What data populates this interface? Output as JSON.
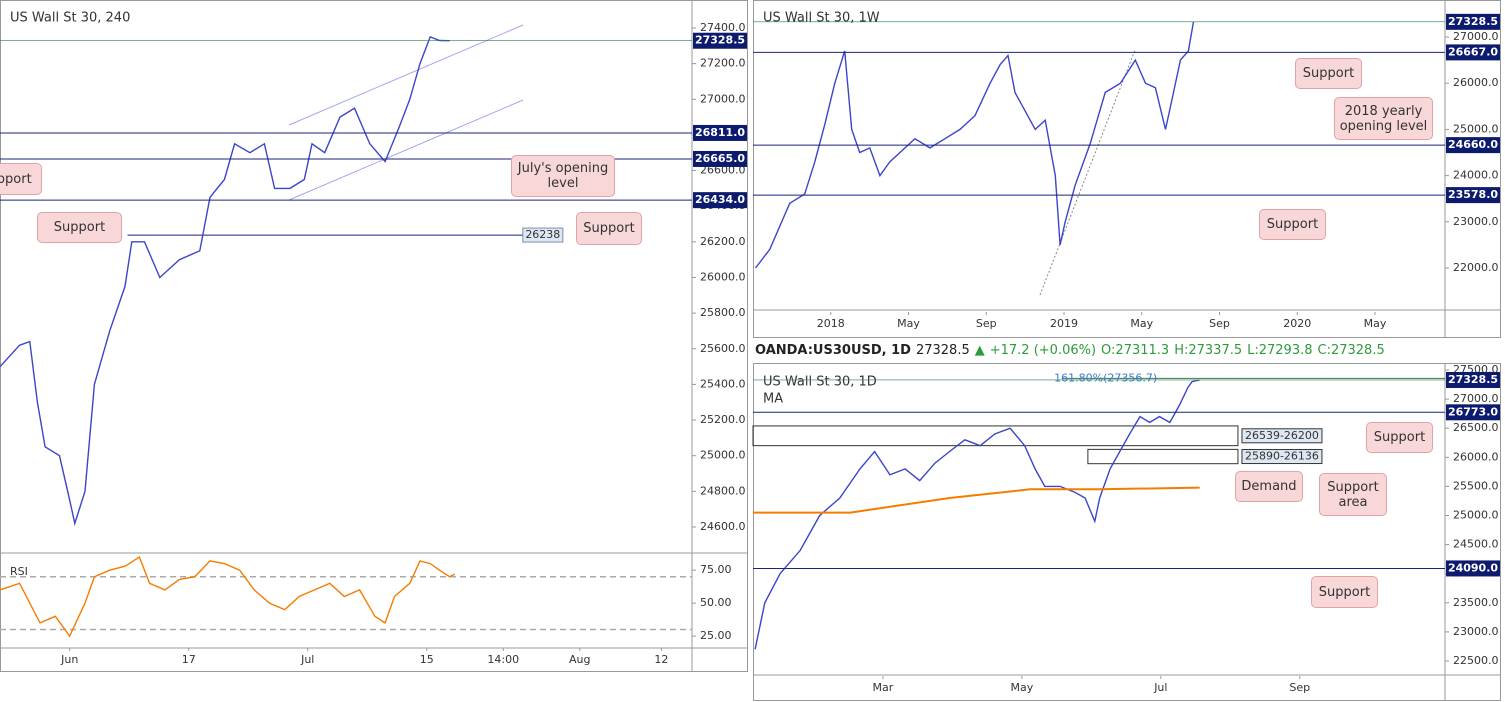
{
  "header": {
    "symbol": "OANDA:US30USD, 1D",
    "last": "27328.5",
    "arrow": "▲",
    "change": "+17.2 (+0.06%)",
    "open": "O:27311.3",
    "high": "H:27337.5",
    "low": "L:27293.8",
    "close": "C:27328.5"
  },
  "chart_data": [
    {
      "type": "line",
      "title": "US Wall St 30, 240",
      "x": [
        -5.2,
        -2.9,
        -1.7,
        -0.8,
        0.1,
        1.8,
        3,
        3.6,
        4.8,
        5.9,
        7.7,
        9.5,
        10.3,
        11.8,
        13.6,
        15.9,
        18.3,
        19.5,
        21.2,
        22.4,
        24.2,
        25.9,
        27.1,
        28.9,
        30.6,
        31.5,
        33,
        34.8,
        36.5,
        38.3,
        40.1,
        41.8,
        43,
        44.2,
        45.4,
        46.5,
        47.7
      ],
      "series": [
        {
          "color": "#3b45c9",
          "values": [
            25500,
            25620,
            25640,
            25300,
            25050,
            25000,
            24750,
            24620,
            24800,
            25400,
            25700,
            25950,
            26200,
            26200,
            26000,
            26100,
            26150,
            26450,
            26550,
            26750,
            26700,
            26750,
            26500,
            26500,
            26550,
            26750,
            26700,
            26900,
            26950,
            26750,
            26650,
            26850,
            27000,
            27200,
            27350,
            27330,
            27328.5
          ]
        }
      ],
      "xlim": [
        -5.2,
        76.2
      ],
      "ylim": [
        24454,
        27529
      ],
      "xticks": [
        {
          "value": 3,
          "label": "Jun"
        },
        17,
        {
          "value": 31,
          "label": "Jul"
        },
        {
          "value": 45,
          "label": "15"
        },
        {
          "value": 54,
          "label": "14:00"
        },
        {
          "value": 63,
          "label": "Aug"
        },
        {
          "value": 72.6,
          "label": "12"
        }
      ],
      "yticks": [
        {
          "value": 27400,
          "label": "27400.0"
        },
        {
          "value": 27200,
          "label": "27200.0"
        },
        {
          "value": 27000,
          "label": "27000.0"
        },
        {
          "value": 26800,
          "label": "26800.0"
        },
        {
          "value": 26600,
          "label": "26600.0"
        },
        {
          "value": 26400,
          "label": "26400.0"
        },
        {
          "value": 26200,
          "label": "26200.0"
        },
        {
          "value": 26000,
          "label": "26000.0"
        },
        {
          "value": 25800,
          "label": "25800.0"
        },
        {
          "value": 25600,
          "label": "25600.0"
        },
        {
          "value": 25400,
          "label": "25400.0"
        },
        {
          "value": 25200,
          "label": "25200.0"
        },
        {
          "value": 25000,
          "label": "25000.0"
        },
        {
          "value": 24800,
          "label": "24800.0"
        },
        {
          "value": 24600,
          "label": "24600.0"
        }
      ],
      "levels": [
        27328.5,
        {
          "value": 26811,
          "label": "26811.0"
        },
        {
          "value": 26665,
          "label": "26665.0"
        },
        {
          "value": 26434,
          "label": "26434.0"
        }
      ],
      "minor_levels": [
        {
          "value": 26238,
          "x": [
            9.8,
            56.3
          ]
        }
      ],
      "annotations": [
        "Support",
        "July's opening level",
        "Support",
        "Support"
      ]
    },
    {
      "type": "line",
      "title": "RSI",
      "x": [
        -5.2,
        -2.9,
        -0.5,
        1.3,
        3,
        4.8,
        5.9,
        7.7,
        9.5,
        11.2,
        12.4,
        14.2,
        15.9,
        17.7,
        19.5,
        21.2,
        23,
        24.7,
        26.5,
        28.3,
        30,
        31.8,
        33.6,
        35.3,
        37.1,
        38.9,
        40.1,
        41.2,
        43,
        44.2,
        45.4,
        46.5,
        47.7,
        48.3
      ],
      "series": [
        {
          "color": "#f57c00",
          "values": [
            60,
            65,
            35,
            40,
            25,
            50,
            70,
            75,
            78,
            85,
            65,
            60,
            68,
            70,
            82,
            80,
            75,
            60,
            50,
            45,
            55,
            60,
            65,
            55,
            60,
            40,
            35,
            55,
            65,
            82,
            80,
            75,
            70,
            72
          ]
        }
      ],
      "xlim": [
        -5.2,
        76.2
      ],
      "ylim": [
        16,
        88
      ],
      "yticks": [
        {
          "value": 75,
          "label": "75.00"
        },
        {
          "value": 50,
          "label": "50.00"
        },
        {
          "value": 25,
          "label": "25.00"
        }
      ],
      "bands": [
        70,
        30
      ]
    },
    {
      "type": "line",
      "title": "US Wall St 30, 1W",
      "x": [
        -3.87,
        -3.14,
        -2.11,
        -1.34,
        -0.82,
        -0.31,
        0.21,
        0.72,
        1.08,
        1.49,
        2.01,
        2.53,
        3.04,
        3.56,
        4.33,
        5.1,
        5.88,
        6.65,
        7.42,
        8.2,
        8.71,
        9.12,
        9.48,
        10.0,
        10.52,
        11.03,
        11.55,
        11.8,
        12.06,
        12.58,
        13.35,
        14.12,
        14.9,
        15.67,
        16.19,
        16.7,
        17.22,
        17.58,
        17.99,
        18.4,
        18.66
      ],
      "series": [
        {
          "color": "#3b45c9",
          "values": [
            22000,
            22400,
            23400,
            23600,
            24300,
            25100,
            26000,
            26700,
            25000,
            24500,
            24600,
            24000,
            24300,
            24500,
            24800,
            24600,
            24800,
            25000,
            25300,
            26000,
            26400,
            26600,
            25800,
            25400,
            25000,
            25200,
            24000,
            22500,
            23000,
            23800,
            24700,
            25800,
            26000,
            26500,
            26000,
            25900,
            25000,
            25700,
            26500,
            26700,
            27328.5
          ]
        }
      ],
      "xlim": [
        -4.0,
        31.6
      ],
      "ylim": [
        21091,
        27693
      ],
      "xticks": [
        {
          "value": 0,
          "label": "2018"
        },
        {
          "value": 4,
          "label": "May"
        },
        {
          "value": 8,
          "label": "Sep"
        },
        {
          "value": 12,
          "label": "2019"
        },
        {
          "value": 16,
          "label": "May"
        },
        {
          "value": 20,
          "label": "Sep"
        },
        {
          "value": 24,
          "label": "2020"
        },
        {
          "value": 28,
          "label": "May"
        }
      ],
      "yticks": [
        {
          "value": 27000,
          "label": "27000.0"
        },
        {
          "value": 26000,
          "label": "26000.0"
        },
        {
          "value": 25000,
          "label": "25000.0"
        },
        {
          "value": 24000,
          "label": "24000.0"
        },
        {
          "value": 23000,
          "label": "23000.0"
        },
        {
          "value": 22000,
          "label": "22000.0"
        }
      ],
      "levels": [
        27328.5,
        {
          "value": 26667,
          "label": "26667.0"
        },
        {
          "value": 24660,
          "label": "24660.0"
        },
        {
          "value": 23578,
          "label": "23578.0"
        }
      ],
      "annotations": [
        "Support",
        "2018 yearly opening level",
        "Support"
      ]
    },
    {
      "type": "line",
      "title": "US Wall St 30, 1D",
      "xlim": [
        1.13,
        11.09
      ],
      "ylim": [
        22259,
        27586
      ],
      "series": [
        {
          "color": "#3b45c9",
          "x": [
            1.16,
            1.3,
            1.52,
            1.81,
            2.09,
            2.38,
            2.67,
            2.88,
            3.1,
            3.32,
            3.53,
            3.75,
            3.96,
            4.18,
            4.4,
            4.61,
            4.83,
            5.04,
            5.19,
            5.33,
            5.55,
            5.76,
            5.91,
            6.05,
            6.12,
            6.27,
            6.41,
            6.55,
            6.7,
            6.84,
            6.98,
            7.13,
            7.27,
            7.39,
            7.45,
            7.56
          ],
          "values": [
            22700,
            23500,
            24000,
            24400,
            25000,
            25300,
            25800,
            26100,
            25700,
            25800,
            25600,
            25900,
            26100,
            26300,
            26200,
            26400,
            26500,
            26200,
            25800,
            25500,
            25500,
            25400,
            25300,
            24900,
            25300,
            25800,
            26100,
            26400,
            26700,
            26600,
            26700,
            26600,
            26900,
            27200,
            27300,
            27328.5
          ]
        },
        {
          "name": "MA",
          "color": "#f57c00",
          "x": [
            1.13,
            2.53,
            3.96,
            5.12,
            6.12,
            7.56
          ],
          "values": [
            25050,
            25050,
            25300,
            25450,
            25450,
            25480
          ]
        }
      ],
      "xticks": [
        {
          "value": 3,
          "label": "Mar"
        },
        {
          "value": 5,
          "label": "May"
        },
        {
          "value": 7,
          "label": "Jul"
        },
        {
          "value": 9,
          "label": "Sep"
        }
      ],
      "yticks": [
        {
          "value": 27500,
          "label": "27500.0"
        },
        {
          "value": 27000,
          "label": "27000.0"
        },
        {
          "value": 26500,
          "label": "26500.0"
        },
        {
          "value": 26000,
          "label": "26000.0"
        },
        {
          "value": 25500,
          "label": "25500.0"
        },
        {
          "value": 25000,
          "label": "25000.0"
        },
        {
          "value": 24500,
          "label": "24500.0"
        },
        {
          "value": 24000,
          "label": "24000.0"
        },
        {
          "value": 23500,
          "label": "23500.0"
        },
        {
          "value": 23000,
          "label": "23000.0"
        },
        {
          "value": 22500,
          "label": "22500.0"
        }
      ],
      "levels": [
        27328.5,
        {
          "value": 26773,
          "label": "26773.0"
        },
        {
          "value": 24090,
          "label": "24090.0"
        }
      ],
      "zones": [
        {
          "label": "26539-26200",
          "high": 26539,
          "low": 26200,
          "x": [
            1.13,
            8.11
          ]
        },
        {
          "label": "25890-26136",
          "high": 26136,
          "low": 25890,
          "x": [
            5.95,
            8.11
          ]
        }
      ],
      "fib": {
        "label": "161.80%(27356.7)",
        "value": 27356.7,
        "x": 5.58
      },
      "annotations": [
        "Support",
        "Demand",
        "Support area",
        "Support"
      ]
    }
  ]
}
